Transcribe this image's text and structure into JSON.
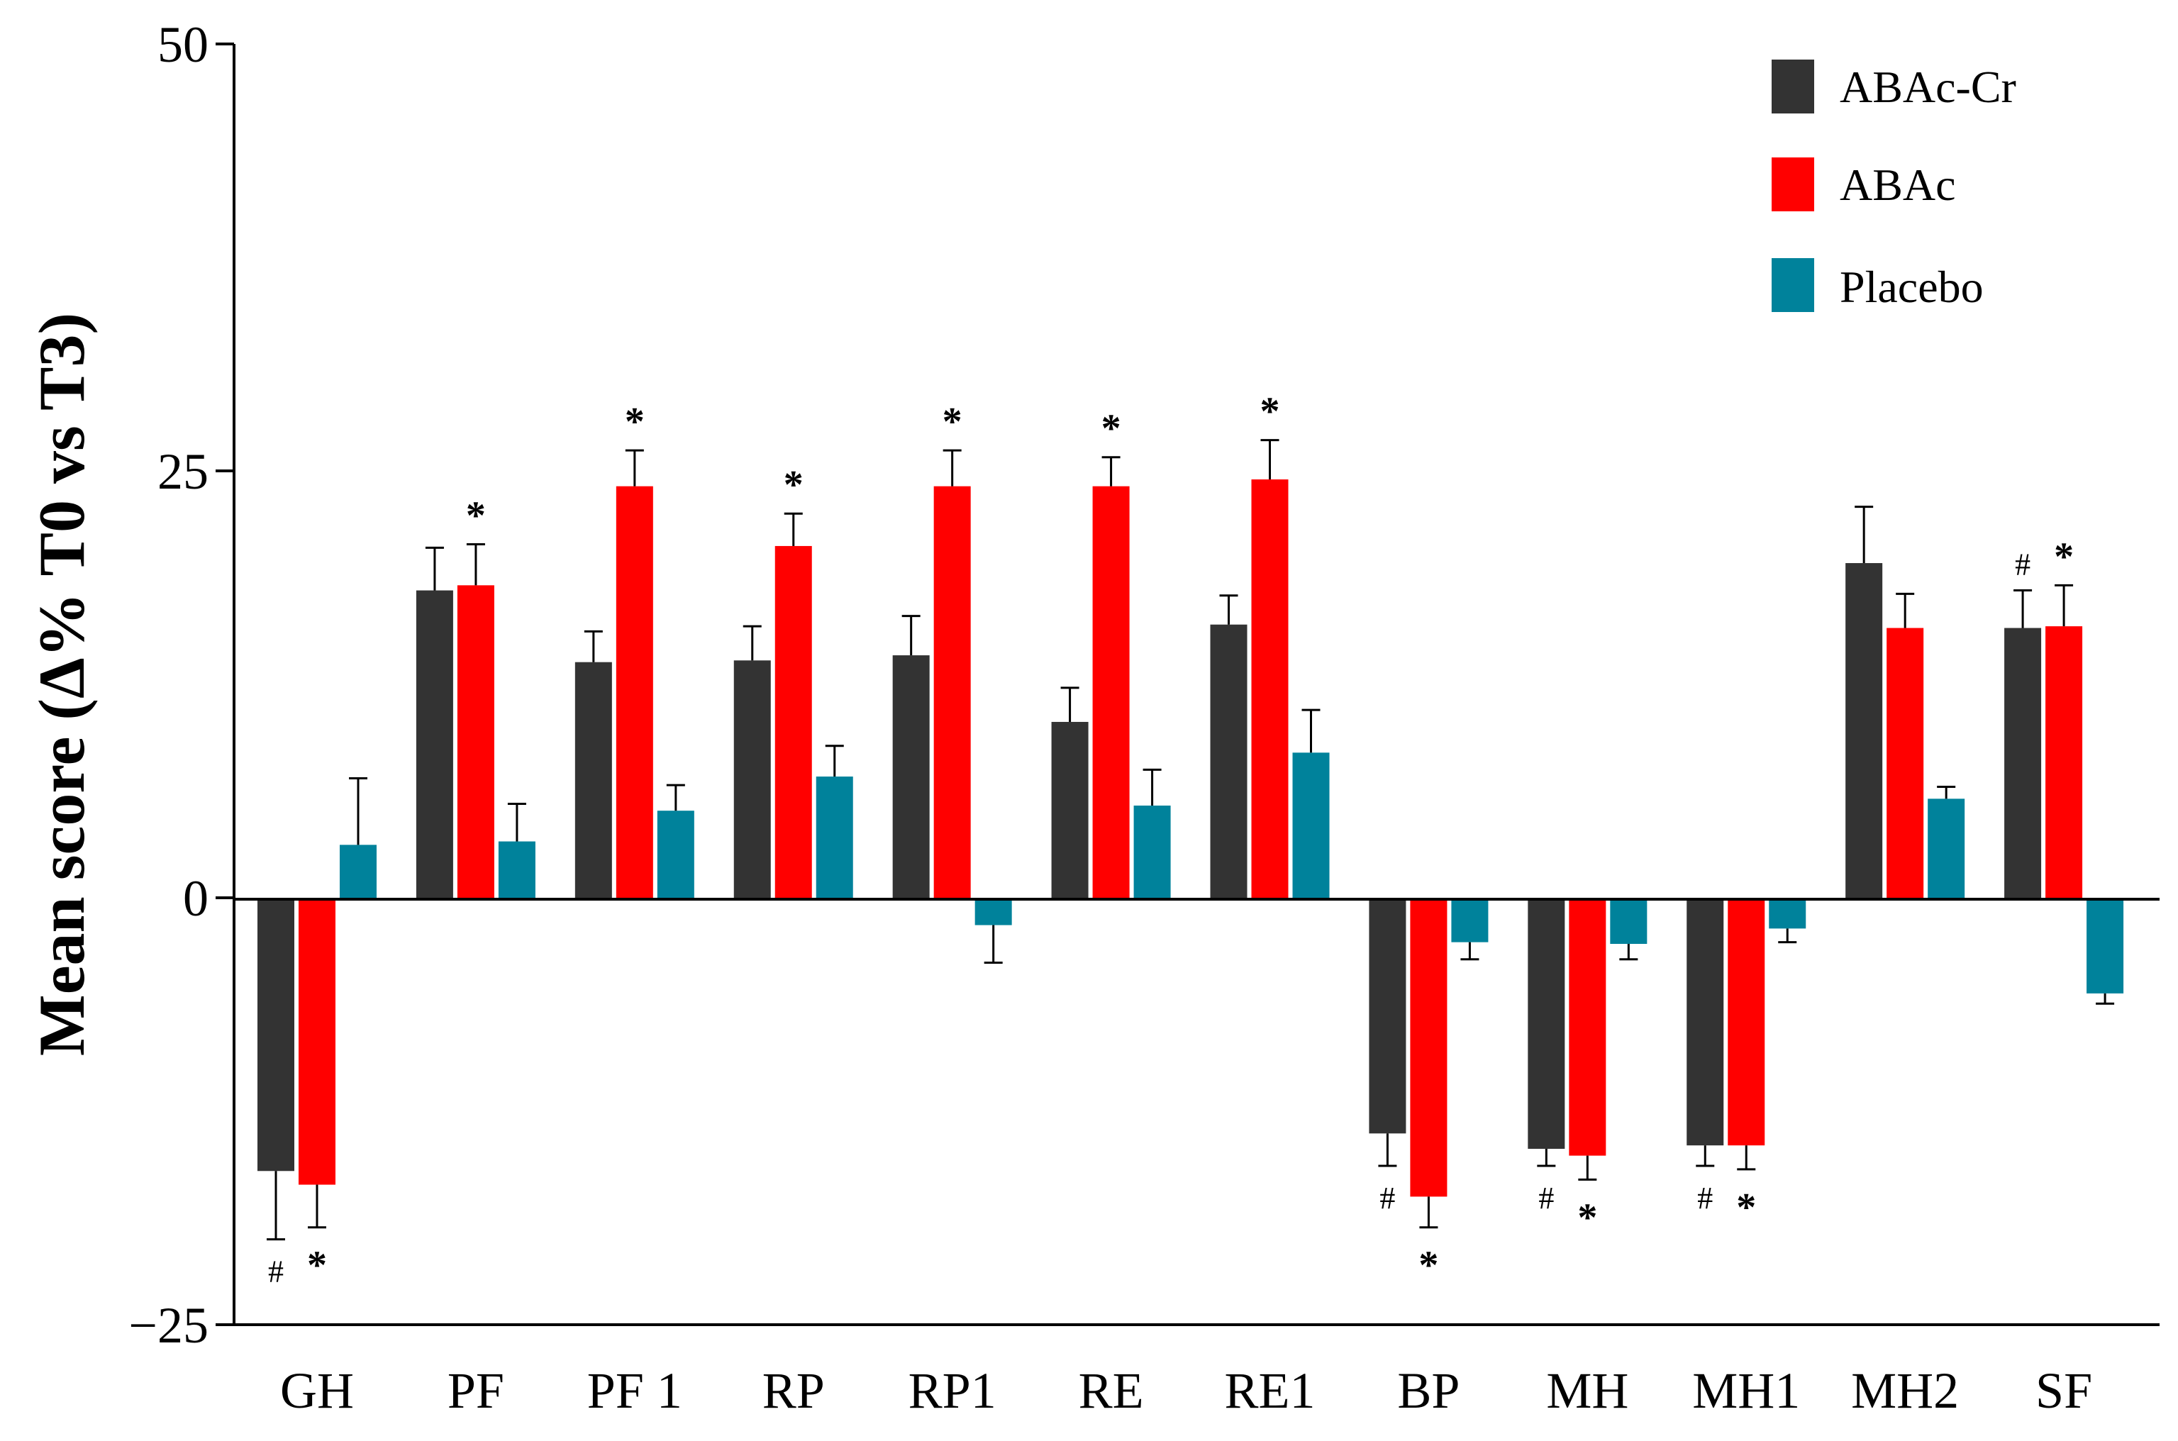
{
  "chart_data": {
    "type": "bar",
    "title": "",
    "xlabel": "",
    "ylabel": "Mean score (Δ% T0 vs T3)",
    "ylim": [
      -25,
      50
    ],
    "yticks": [
      -25,
      0,
      25,
      50
    ],
    "ytick_labels": [
      "−25",
      "0",
      "25",
      "50"
    ],
    "grid": false,
    "legend_position": "top-right",
    "categories": [
      "GH",
      "PF",
      "PF 1",
      "RP",
      "RP1",
      "RE",
      "RE1",
      "BP",
      "MH",
      "MH1",
      "MH2",
      "SF"
    ],
    "series": [
      {
        "name": "ABAc-Cr",
        "color": "#333333",
        "values": [
          -16,
          18,
          13.8,
          13.9,
          14.2,
          10.3,
          16,
          -13.8,
          -14.7,
          -14.5,
          19.6,
          15.8
        ],
        "errors": [
          4,
          2.5,
          1.8,
          2,
          2.3,
          2,
          1.7,
          1.9,
          1,
          1.2,
          3.3,
          2.2
        ],
        "markers": [
          "#",
          "",
          "",
          "",
          "",
          "",
          "",
          "#",
          "#",
          "#",
          "",
          "#"
        ]
      },
      {
        "name": "ABAc",
        "color": "#ff0000",
        "values": [
          -16.8,
          18.3,
          24.1,
          20.6,
          24.1,
          24.1,
          24.5,
          -17.5,
          -15.1,
          -14.5,
          15.8,
          15.9
        ],
        "errors": [
          2.5,
          2.4,
          2.1,
          1.9,
          2.1,
          1.7,
          2.3,
          1.8,
          1.4,
          1.4,
          2,
          2.4
        ],
        "markers": [
          "*",
          "*",
          "*",
          "*",
          "*",
          "*",
          "*",
          "*",
          "*",
          "*",
          "",
          "*"
        ]
      },
      {
        "name": "Placebo",
        "color": "#00829b",
        "values": [
          3.1,
          3.3,
          5.1,
          7.1,
          -1.6,
          5.4,
          8.5,
          -2.6,
          -2.7,
          -1.8,
          5.8,
          -5.6
        ],
        "errors": [
          3.9,
          2.2,
          1.5,
          1.8,
          2.2,
          2.1,
          2.5,
          1,
          0.9,
          0.8,
          0.7,
          0.6
        ],
        "markers": [
          "",
          "",
          "",
          "",
          "",
          "",
          "",
          "",
          "",
          "",
          "",
          ""
        ]
      }
    ]
  },
  "legend": {
    "items": [
      {
        "label": "ABAc-Cr",
        "color": "#333333"
      },
      {
        "label": "ABAc",
        "color": "#ff0000"
      },
      {
        "label": "Placebo",
        "color": "#00829b"
      }
    ]
  }
}
